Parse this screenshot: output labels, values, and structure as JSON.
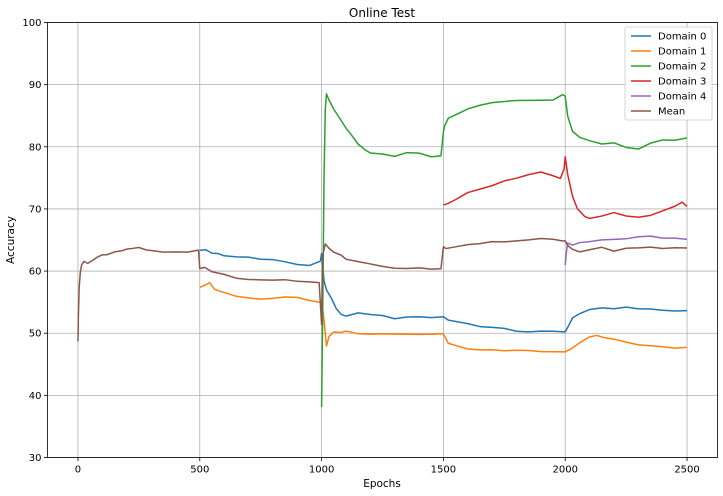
{
  "chart_data": {
    "type": "line",
    "title": "Online Test",
    "xlabel": "Epochs",
    "ylabel": "Accuracy",
    "xlim": [
      -125,
      2625
    ],
    "ylim": [
      30,
      100
    ],
    "xticks": [
      0,
      500,
      1000,
      1500,
      2000,
      2500
    ],
    "yticks": [
      30,
      40,
      50,
      60,
      70,
      80,
      90,
      100
    ],
    "grid": true,
    "legend_position": "top-right",
    "series": [
      {
        "name": "Domain 0",
        "color": "#1f77b4",
        "x": [
          500,
          525,
          550,
          575,
          600,
          650,
          700,
          750,
          800,
          850,
          900,
          950,
          995,
          1000,
          1010,
          1020,
          1040,
          1060,
          1080,
          1100,
          1150,
          1200,
          1250,
          1300,
          1350,
          1400,
          1450,
          1500,
          1520,
          1560,
          1600,
          1650,
          1700,
          1750,
          1800,
          1850,
          1900,
          1950,
          2000,
          2010,
          2030,
          2060,
          2100,
          2150,
          2200,
          2250,
          2300,
          2350,
          2400,
          2450,
          2500
        ],
        "y": [
          63.5,
          63.3,
          63.0,
          62.8,
          62.5,
          62.3,
          62.2,
          62.0,
          61.8,
          61.5,
          61.2,
          61.0,
          61.5,
          63.0,
          58.5,
          57.0,
          55.5,
          54.0,
          53.0,
          52.8,
          53.2,
          53.0,
          52.8,
          52.3,
          52.5,
          52.6,
          52.5,
          52.5,
          52.0,
          51.8,
          51.4,
          51.0,
          51.0,
          50.8,
          50.4,
          50.2,
          50.2,
          50.2,
          50.2,
          51.0,
          52.5,
          53.3,
          53.8,
          54.0,
          54.0,
          54.1,
          54.0,
          53.9,
          53.8,
          53.7,
          53.7
        ]
      },
      {
        "name": "Domain 1",
        "color": "#ff7f0e",
        "x": [
          500,
          525,
          540,
          560,
          580,
          600,
          650,
          700,
          750,
          800,
          850,
          900,
          950,
          995,
          1000,
          1010,
          1020,
          1030,
          1050,
          1080,
          1100,
          1150,
          1200,
          1250,
          1300,
          1350,
          1400,
          1450,
          1500,
          1520,
          1560,
          1600,
          1650,
          1700,
          1750,
          1800,
          1850,
          1900,
          1950,
          2000,
          2030,
          2060,
          2100,
          2130,
          2160,
          2200,
          2250,
          2300,
          2350,
          2400,
          2450,
          2500
        ],
        "y": [
          57.5,
          57.8,
          58.0,
          57.0,
          56.8,
          56.5,
          56.0,
          55.6,
          55.5,
          55.6,
          55.8,
          55.7,
          55.4,
          55.0,
          55.5,
          52.0,
          48.0,
          49.5,
          50.3,
          50.0,
          50.2,
          50.0,
          49.8,
          50.0,
          49.8,
          49.8,
          49.9,
          49.8,
          49.8,
          48.5,
          47.8,
          47.6,
          47.3,
          47.2,
          47.2,
          47.4,
          47.2,
          47.0,
          47.0,
          47.0,
          47.5,
          48.5,
          49.3,
          49.5,
          49.2,
          49.0,
          48.6,
          48.2,
          47.9,
          47.7,
          47.6,
          47.6
        ]
      },
      {
        "name": "Domain 2",
        "color": "#2ca02c",
        "x": [
          1000,
          1005,
          1010,
          1015,
          1020,
          1030,
          1050,
          1070,
          1100,
          1120,
          1150,
          1180,
          1200,
          1250,
          1300,
          1350,
          1400,
          1450,
          1490,
          1500,
          1505,
          1520,
          1560,
          1600,
          1650,
          1700,
          1750,
          1800,
          1850,
          1900,
          1950,
          1990,
          2000,
          2010,
          2030,
          2060,
          2100,
          2150,
          2200,
          2250,
          2300,
          2350,
          2400,
          2450,
          2500
        ],
        "y": [
          38.0,
          55.0,
          75.0,
          86.0,
          88.5,
          87.5,
          86.0,
          85.0,
          83.0,
          82.0,
          80.5,
          79.5,
          79.0,
          78.8,
          78.5,
          79.0,
          79.0,
          78.5,
          78.5,
          82.5,
          83.5,
          84.5,
          85.3,
          86.0,
          86.8,
          87.0,
          87.2,
          87.5,
          87.5,
          87.6,
          87.5,
          88.3,
          88.0,
          85.0,
          82.5,
          81.5,
          81.0,
          80.5,
          80.5,
          80.0,
          79.5,
          80.5,
          81.0,
          81.2,
          81.5
        ]
      },
      {
        "name": "Domain 3",
        "color": "#d62728",
        "x": [
          1500,
          1520,
          1550,
          1600,
          1650,
          1700,
          1750,
          1800,
          1850,
          1900,
          1950,
          1980,
          1995,
          2000,
          2010,
          2030,
          2050,
          2080,
          2100,
          2150,
          2200,
          2250,
          2300,
          2350,
          2400,
          2450,
          2480,
          2500
        ],
        "y": [
          70.5,
          71.0,
          71.5,
          72.5,
          73.2,
          73.8,
          74.5,
          75.0,
          75.5,
          75.8,
          75.4,
          75.0,
          76.5,
          78.3,
          75.5,
          72.0,
          70.0,
          68.7,
          68.5,
          68.8,
          69.5,
          69.0,
          68.8,
          69.0,
          69.8,
          70.5,
          71.0,
          70.5
        ]
      },
      {
        "name": "Domain 4",
        "color": "#9467bd",
        "x": [
          2000,
          2005,
          2010,
          2030,
          2060,
          2100,
          2150,
          2200,
          2250,
          2300,
          2350,
          2400,
          2450,
          2500
        ],
        "y": [
          61.0,
          63.0,
          64.5,
          64.3,
          64.6,
          64.8,
          65.0,
          65.0,
          65.2,
          65.4,
          65.5,
          65.4,
          65.3,
          65.2
        ]
      },
      {
        "name": "Mean",
        "color": "#8c564b",
        "x": [
          0,
          2,
          5,
          10,
          15,
          25,
          40,
          60,
          80,
          100,
          120,
          150,
          180,
          200,
          220,
          250,
          280,
          300,
          350,
          400,
          450,
          495,
          500,
          520,
          550,
          600,
          650,
          700,
          750,
          800,
          850,
          900,
          950,
          990,
          1000,
          1005,
          1015,
          1030,
          1050,
          1080,
          1100,
          1150,
          1200,
          1250,
          1300,
          1350,
          1400,
          1450,
          1490,
          1500,
          1510,
          1550,
          1600,
          1650,
          1700,
          1750,
          1800,
          1850,
          1900,
          1950,
          1990,
          2000,
          2010,
          2030,
          2060,
          2100,
          2150,
          2200,
          2250,
          2300,
          2350,
          2400,
          2450,
          2500
        ],
        "y": [
          48.8,
          53.0,
          57.5,
          60.0,
          61.0,
          61.5,
          61.2,
          61.6,
          62.2,
          62.5,
          62.7,
          63.0,
          63.2,
          63.5,
          63.5,
          63.7,
          63.5,
          63.3,
          63.1,
          63.0,
          63.2,
          63.3,
          60.5,
          60.5,
          60.0,
          59.5,
          59.0,
          58.8,
          58.7,
          58.5,
          58.5,
          58.3,
          58.2,
          58.0,
          51.5,
          62.5,
          64.3,
          63.8,
          63.0,
          62.5,
          62.0,
          61.5,
          61.2,
          60.8,
          60.3,
          60.5,
          60.5,
          60.4,
          60.3,
          63.8,
          63.7,
          64.0,
          64.3,
          64.5,
          64.7,
          64.6,
          65.0,
          65.0,
          65.1,
          65.0,
          64.8,
          65.0,
          64.2,
          63.5,
          63.2,
          63.5,
          63.7,
          63.3,
          63.6,
          63.7,
          63.8,
          63.6,
          63.6,
          63.7
        ]
      }
    ]
  }
}
